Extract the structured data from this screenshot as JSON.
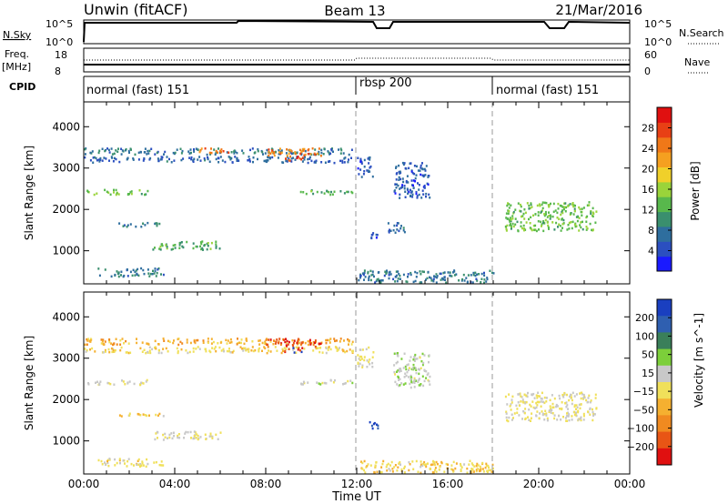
{
  "header": {
    "title": "Unwin (fitACF)",
    "beam": "Beam 13",
    "date": "21/Mar/2016"
  },
  "nsky_panel": {
    "left_label": "N.Sky",
    "right_label": "N.Search",
    "left_ticks": [
      "10^5",
      "10^0"
    ],
    "right_ticks": [
      "10^5",
      "10^0"
    ]
  },
  "freq_panel": {
    "left_label_line1": "Freq.",
    "left_label_line2": "[MHz]",
    "right_label": "Nave",
    "left_ticks": [
      "18",
      "8"
    ],
    "right_ticks": [
      "60",
      "0"
    ]
  },
  "cpid_panel": {
    "label": "CPID",
    "segments": [
      {
        "label": "normal (fast) 151",
        "start_hour": 0,
        "end_hour": 12
      },
      {
        "label": "rbsp 200",
        "start_hour": 12,
        "end_hour": 18
      },
      {
        "label": "normal (fast) 151",
        "start_hour": 18,
        "end_hour": 24
      }
    ]
  },
  "x_axis": {
    "label": "Time UT",
    "tick_labels": [
      "00:00",
      "04:00",
      "08:00",
      "12:00",
      "16:00",
      "20:00",
      "00:00"
    ]
  },
  "colors": {
    "power_scale": [
      "#1a1aff",
      "#2b4fc0",
      "#2e6e9e",
      "#3a8f6e",
      "#58b84c",
      "#9ad43a",
      "#f0d02a",
      "#f5a020",
      "#f07818",
      "#e84015",
      "#e01010"
    ],
    "velocity_scale": [
      "#1a3fc0",
      "#2f5fb0",
      "#3a7f5a",
      "#7ccf3a",
      "#c8c8c8",
      "#f0e05a",
      "#f5b030",
      "#f08a20",
      "#e85515",
      "#e01010"
    ]
  },
  "chart_data": [
    {
      "type": "heatmap",
      "parameter": "power",
      "ylabel": "Slant Range [km]",
      "ylim": [
        200,
        4600
      ],
      "y_ticks": [
        1000,
        2000,
        3000,
        4000
      ],
      "xlim": [
        0,
        24
      ],
      "colorbar": {
        "label": "Power [dB]",
        "range": [
          0,
          32
        ],
        "ticks": [
          4,
          8,
          12,
          16,
          20,
          24,
          28
        ]
      },
      "echo_regions": [
        {
          "t0": 0.0,
          "t1": 11.8,
          "r0": 3350,
          "r1": 3500,
          "value": 8
        },
        {
          "t0": 0.0,
          "t1": 11.8,
          "r0": 3150,
          "r1": 3300,
          "value": 6
        },
        {
          "t0": 5.0,
          "t1": 6.5,
          "r0": 3380,
          "r1": 3500,
          "value": 24
        },
        {
          "t0": 8.0,
          "t1": 10.5,
          "r0": 3300,
          "r1": 3500,
          "value": 24
        },
        {
          "t0": 8.8,
          "t1": 9.6,
          "r0": 3200,
          "r1": 3300,
          "value": 28
        },
        {
          "t0": 0.0,
          "t1": 2.8,
          "r0": 2380,
          "r1": 2500,
          "value": 14
        },
        {
          "t0": 9.5,
          "t1": 11.8,
          "r0": 2380,
          "r1": 2500,
          "value": 12
        },
        {
          "t0": 1.5,
          "t1": 3.5,
          "r0": 1600,
          "r1": 1700,
          "value": 8
        },
        {
          "t0": 3.0,
          "t1": 6.0,
          "r0": 1050,
          "r1": 1250,
          "value": 12
        },
        {
          "t0": 12.0,
          "t1": 12.7,
          "r0": 2800,
          "r1": 3300,
          "value": 5
        },
        {
          "t0": 13.6,
          "t1": 15.2,
          "r0": 2300,
          "r1": 3150,
          "value": 5
        },
        {
          "t0": 12.5,
          "t1": 12.9,
          "r0": 1300,
          "r1": 1500,
          "value": 5
        },
        {
          "t0": 13.2,
          "t1": 14.1,
          "r0": 1450,
          "r1": 1700,
          "value": 6
        },
        {
          "t0": 12.0,
          "t1": 18.0,
          "r0": 250,
          "r1": 550,
          "value": 8
        },
        {
          "t0": 0.6,
          "t1": 3.5,
          "r0": 400,
          "r1": 600,
          "value": 8
        },
        {
          "t0": 18.5,
          "t1": 22.5,
          "r0": 1500,
          "r1": 2200,
          "value": 14
        }
      ]
    },
    {
      "type": "heatmap",
      "parameter": "velocity",
      "ylabel": "Slant Range [km]",
      "ylim": [
        200,
        4600
      ],
      "y_ticks": [
        1000,
        2000,
        3000,
        4000
      ],
      "xlim": [
        0,
        24
      ],
      "colorbar": {
        "label": "Velocity [m s^-1]",
        "range": [
          -250,
          250
        ],
        "ticks": [
          200,
          100,
          50,
          15,
          -15,
          -50,
          -100,
          -200
        ]
      },
      "echo_regions": [
        {
          "t0": 0.0,
          "t1": 11.8,
          "r0": 3350,
          "r1": 3500,
          "value": -80
        },
        {
          "t0": 0.0,
          "t1": 11.8,
          "r0": 3150,
          "r1": 3300,
          "value": -30
        },
        {
          "t0": 8.0,
          "t1": 10.5,
          "r0": 3300,
          "r1": 3500,
          "value": -180
        },
        {
          "t0": 8.8,
          "t1": 9.6,
          "r0": 3150,
          "r1": 3300,
          "value": -220
        },
        {
          "t0": 0.0,
          "t1": 2.8,
          "r0": 2380,
          "r1": 2500,
          "value": 0
        },
        {
          "t0": 9.5,
          "t1": 11.8,
          "r0": 2380,
          "r1": 2500,
          "value": 20
        },
        {
          "t0": 1.5,
          "t1": 3.5,
          "r0": 1600,
          "r1": 1700,
          "value": -40
        },
        {
          "t0": 3.0,
          "t1": 6.0,
          "r0": 1050,
          "r1": 1250,
          "value": 0
        },
        {
          "t0": 12.0,
          "t1": 12.7,
          "r0": 2800,
          "r1": 3300,
          "value": 0
        },
        {
          "t0": 13.6,
          "t1": 15.2,
          "r0": 2300,
          "r1": 3150,
          "value": 40
        },
        {
          "t0": 12.5,
          "t1": 12.9,
          "r0": 1300,
          "r1": 1500,
          "value": 200
        },
        {
          "t0": 12.0,
          "t1": 18.0,
          "r0": 250,
          "r1": 550,
          "value": -40
        },
        {
          "t0": 0.6,
          "t1": 3.5,
          "r0": 400,
          "r1": 600,
          "value": -20
        },
        {
          "t0": 18.5,
          "t1": 22.5,
          "r0": 1500,
          "r1": 2200,
          "value": 0
        }
      ]
    }
  ]
}
